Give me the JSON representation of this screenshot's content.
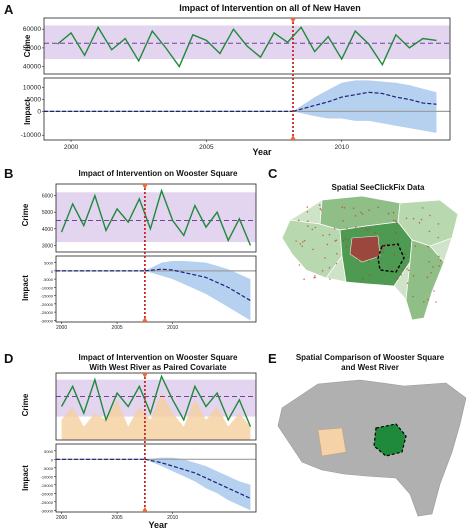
{
  "panels": {
    "A": {
      "letter": "A",
      "title": "Impact of Intervention on all of New Haven",
      "crime_label": "Crime",
      "impact_label": "Impact",
      "xlabel": "Year"
    },
    "B": {
      "letter": "B",
      "title": "Impact of Intervention on Wooster Square",
      "crime_label": "Crime",
      "impact_label": "Impact"
    },
    "C": {
      "letter": "C",
      "title": "Spatial SeeClickFix Data"
    },
    "D": {
      "letter": "D",
      "title_line1": "Impact of Intervention on Wooster Square",
      "title_line2": "With West River as Paired Covariate",
      "crime_label": "Crime",
      "impact_label": "Impact",
      "xlabel": "Year"
    },
    "E": {
      "letter": "E",
      "title_line1": "Spatial Comparison of Wooster Square",
      "title_line2": "and West River"
    }
  },
  "colors": {
    "observed": "#1f8a3b",
    "counterfactual": "#7b3fa0",
    "band_purple": "#d9c6ea",
    "impact_line": "#1a237e",
    "impact_band": "#a9c8ec",
    "intervention": "#c62828",
    "covariate": "#f5cf9e",
    "map_grey": "#b0b0b0",
    "map_light_green": "#a8cfa0",
    "map_dark_green": "#2e7d32",
    "map_peach": "#f5d2a8"
  },
  "chart_data": [
    {
      "panel": "A",
      "type": "line",
      "xlim": [
        1999,
        2014
      ],
      "xticks": [
        "2000",
        "2005",
        "2010"
      ],
      "crime": {
        "ylim": [
          36000,
          66000
        ],
        "yticks": [
          "40000",
          "50000",
          "60000"
        ],
        "counterfactual_mean": 52500,
        "band": [
          44000,
          62000
        ],
        "observed_x": [
          1999.5,
          2000,
          2000.5,
          2001,
          2001.5,
          2002,
          2002.5,
          2003,
          2003.5,
          2004,
          2004.5,
          2005,
          2005.5,
          2006,
          2006.5,
          2007,
          2007.5,
          2008,
          2008.5,
          2009,
          2009.5,
          2010,
          2010.5,
          2011,
          2011.5,
          2012,
          2012.5,
          2013,
          2013.5
        ],
        "observed": [
          52000,
          58000,
          46000,
          61000,
          49000,
          55000,
          43000,
          59000,
          50000,
          40000,
          57000,
          54000,
          47000,
          60000,
          51000,
          45000,
          58000,
          53000,
          61000,
          48000,
          56000,
          44000,
          59000,
          52000,
          41000,
          57000,
          50000,
          55000,
          54000
        ]
      },
      "impact": {
        "ylim": [
          -12000,
          14000
        ],
        "yticks": [
          "10000",
          "5000",
          "0",
          "-10000"
        ],
        "intervention_x": 2008.2,
        "effect_x": [
          2008.2,
          2009,
          2009.5,
          2010,
          2010.5,
          2011,
          2011.5,
          2012,
          2012.5,
          2013,
          2013.5
        ],
        "effect": [
          0,
          2500,
          4000,
          6000,
          7000,
          8000,
          7500,
          6000,
          5000,
          3500,
          3000
        ],
        "band_lo": [
          0,
          -2000,
          -3000,
          -3000,
          -4000,
          -4000,
          -5000,
          -6000,
          -7000,
          -8000,
          -9000
        ],
        "band_hi": [
          0,
          6000,
          9000,
          12000,
          13000,
          13000,
          12500,
          12000,
          11000,
          9500,
          8000
        ]
      }
    },
    {
      "panel": "B",
      "type": "line",
      "xlim": [
        1999.5,
        2017.5
      ],
      "xticks": [
        "2000",
        "2005",
        "2010"
      ],
      "crime": {
        "ylim": [
          2600,
          6700
        ],
        "yticks": [
          "6000",
          "5000",
          "4000",
          "3000"
        ],
        "counterfactual_mean": 4500,
        "band": [
          3200,
          6200
        ],
        "observed_x": [
          2000,
          2001,
          2002,
          2003,
          2004,
          2005,
          2006,
          2007,
          2008,
          2009,
          2010,
          2011,
          2012,
          2013,
          2014,
          2015,
          2016,
          2017
        ],
        "observed": [
          3800,
          5500,
          4200,
          6000,
          3900,
          5200,
          4400,
          5800,
          4000,
          6300,
          4500,
          3600,
          5400,
          4100,
          5000,
          3300,
          4600,
          3000
        ]
      },
      "impact": {
        "ylim": [
          -31000,
          9000
        ],
        "yticks": [
          "5000",
          "0",
          "-5000",
          "-10000",
          "-15000",
          "-20000",
          "-25000",
          "-30000"
        ],
        "intervention_x": 2007.5,
        "effect_x": [
          2007.5,
          2009,
          2010,
          2011,
          2012,
          2013,
          2014,
          2015,
          2016,
          2017
        ],
        "effect": [
          0,
          1000,
          500,
          -1000,
          -2500,
          -4000,
          -7000,
          -10000,
          -14000,
          -18000
        ],
        "band_lo": [
          0,
          -3000,
          -5000,
          -8000,
          -11000,
          -14000,
          -18000,
          -22000,
          -26000,
          -30000
        ],
        "band_hi": [
          0,
          5000,
          6000,
          6000,
          5500,
          5000,
          3000,
          1000,
          -2000,
          -5000
        ]
      }
    },
    {
      "panel": "D",
      "type": "line",
      "xlim": [
        1999.5,
        2017.5
      ],
      "xticks": [
        "2000",
        "2005",
        "2010"
      ],
      "crime": {
        "ylim": [
          0,
          10
        ],
        "counterfactual_mean": 6.5,
        "band": [
          3.5,
          9
        ],
        "observed_x": [
          2000,
          2001,
          2002,
          2003,
          2004,
          2005,
          2006,
          2007,
          2008,
          2009,
          2010,
          2011,
          2012,
          2013,
          2014,
          2015,
          2016,
          2017
        ],
        "observed": [
          5,
          8,
          4,
          9,
          3,
          7,
          5,
          8,
          4,
          9.5,
          6,
          3,
          8,
          5,
          7,
          3,
          6,
          2
        ],
        "covariate": [
          3,
          5,
          2,
          4,
          3,
          6,
          2,
          5,
          3,
          7,
          4,
          2,
          6,
          3,
          5,
          2,
          4,
          2
        ]
      },
      "impact": {
        "ylim": [
          -31000,
          9000
        ],
        "yticks": [
          "5000",
          "0",
          "-5000",
          "-10000",
          "-15000",
          "-20000",
          "-25000",
          "-30000"
        ],
        "intervention_x": 2007.5,
        "effect_x": [
          2007.5,
          2009,
          2010,
          2011,
          2012,
          2013,
          2014,
          2015,
          2016,
          2017
        ],
        "effect": [
          0,
          -2000,
          -4000,
          -6000,
          -8000,
          -11000,
          -14000,
          -17000,
          -20000,
          -23000
        ],
        "band_lo": [
          0,
          -4000,
          -7000,
          -10000,
          -13000,
          -17000,
          -20000,
          -24000,
          -27000,
          -30000
        ],
        "band_hi": [
          0,
          1000,
          1000,
          0,
          -2000,
          -4000,
          -7000,
          -10000,
          -13000,
          -15000
        ]
      }
    }
  ]
}
